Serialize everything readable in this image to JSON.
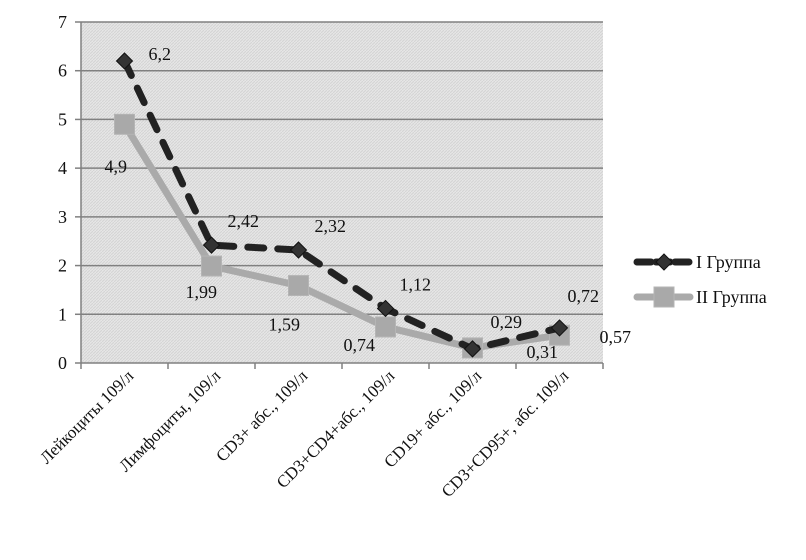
{
  "chart_data": {
    "type": "line",
    "title": "",
    "xlabel": "",
    "ylabel": "",
    "ylim": [
      0,
      7
    ],
    "yticks": [
      "0",
      "1",
      "2",
      "3",
      "4",
      "5",
      "6",
      "7"
    ],
    "grid": true,
    "legend_position": "right",
    "categories": [
      "Лейкоциты 109/л",
      "Лимфоциты, 109/л",
      "CD3+ абс., 109/л",
      "CD3+CD4+абс., 109/л",
      "CD19+ абс., 109/л",
      "CD3+CD95+, абс. 109/л"
    ],
    "series": [
      {
        "name": "I Группа",
        "values": [
          6.2,
          2.42,
          2.32,
          1.12,
          0.29,
          0.72
        ],
        "labels": [
          "6,2",
          "2,42",
          "2,32",
          "1,12",
          "0,29",
          "0,72"
        ],
        "color": "#222222",
        "style": "dashed",
        "marker": "diamond"
      },
      {
        "name": "II Группа",
        "values": [
          4.9,
          1.99,
          1.59,
          0.74,
          0.31,
          0.57
        ],
        "labels": [
          "4,9",
          "1,99",
          "1,59",
          "0,74",
          "0,31",
          "0,57"
        ],
        "color": "#aaaaaa",
        "style": "solid",
        "marker": "square"
      }
    ]
  }
}
